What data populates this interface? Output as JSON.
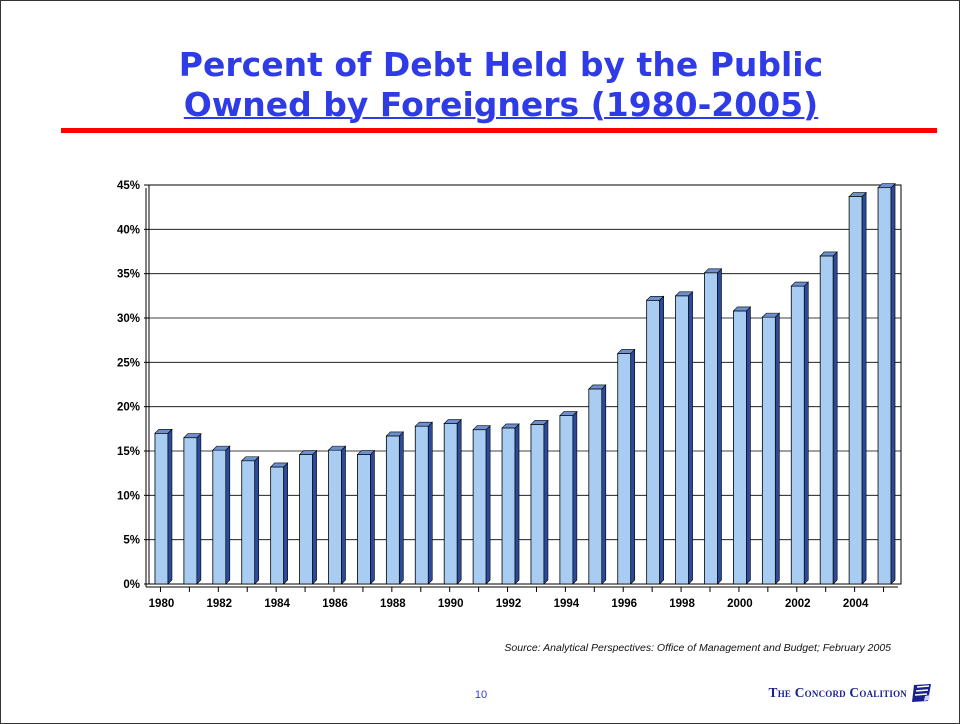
{
  "slide": {
    "title_line1": "Percent of Debt Held by the Public",
    "title_line2": "Owned by Foreigners (1980-2005)",
    "source": "Source: Analytical Perspectives: Office of Management and Budget; February 2005",
    "page_number": "10",
    "brand": "The Concord Coalition",
    "colors": {
      "title": "#2f3be6",
      "rule": "#ff0000",
      "bar_front": "#a9cdf2",
      "bar_side": "#2b4a9a"
    },
    "logo_icon": "concord-flag-logo-icon"
  },
  "chart_data": {
    "type": "bar",
    "title": "",
    "xlabel": "",
    "ylabel": "",
    "categories": [
      "1980",
      "1981",
      "1982",
      "1983",
      "1984",
      "1985",
      "1986",
      "1987",
      "1988",
      "1989",
      "1990",
      "1991",
      "1992",
      "1993",
      "1994",
      "1995",
      "1996",
      "1997",
      "1998",
      "1999",
      "2000",
      "2001",
      "2002",
      "2003",
      "2004",
      "2005"
    ],
    "x_tick_labels": [
      "1980",
      "1982",
      "1984",
      "1986",
      "1988",
      "1990",
      "1992",
      "1994",
      "1996",
      "1998",
      "2000",
      "2002",
      "2004"
    ],
    "values": [
      17.0,
      16.5,
      15.1,
      13.9,
      13.2,
      14.6,
      15.1,
      14.6,
      16.7,
      17.8,
      18.1,
      17.4,
      17.6,
      18.0,
      19.0,
      22.0,
      26.0,
      32.0,
      32.5,
      35.1,
      30.8,
      30.1,
      33.6,
      37.0,
      43.7,
      44.7
    ],
    "ylim": [
      0,
      45
    ],
    "y_ticks": [
      0,
      5,
      10,
      15,
      20,
      25,
      30,
      35,
      40,
      45
    ],
    "y_tick_labels": [
      "0%",
      "5%",
      "10%",
      "15%",
      "20%",
      "25%",
      "30%",
      "35%",
      "40%",
      "45%"
    ],
    "grid": true,
    "legend": "none"
  }
}
